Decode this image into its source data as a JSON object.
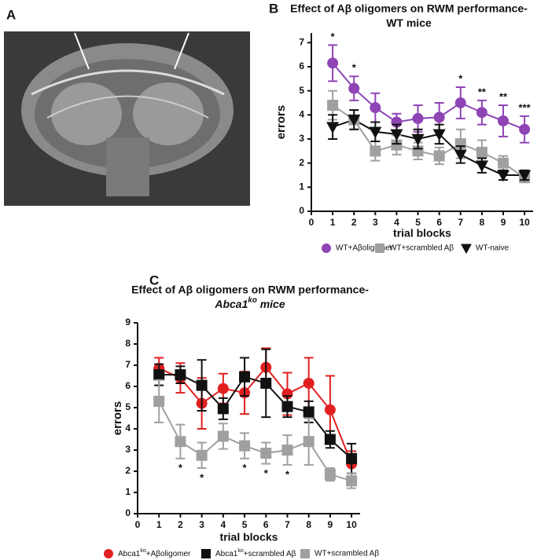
{
  "panels": [
    "A",
    "B",
    "C"
  ],
  "chart_data": [
    {
      "type": "line",
      "title": "Effect of Aβ oligomers on RWM performance-",
      "subtitle": [
        {
          "text": "WT mice"
        }
      ],
      "x_label": "trial blocks",
      "y_label": "errors",
      "x": [
        1,
        2,
        3,
        4,
        5,
        6,
        7,
        8,
        9,
        10
      ],
      "xlim": [
        0,
        10.4
      ],
      "xticks": [
        0,
        1,
        2,
        3,
        4,
        5,
        6,
        7,
        8,
        9,
        10
      ],
      "ylim": [
        0,
        7.4
      ],
      "yticks": [
        0,
        1,
        2,
        3,
        4,
        5,
        6,
        7
      ],
      "grid": false,
      "series": [
        {
          "name": "WT+Aβoligomer",
          "color": "#8e44b5",
          "marker": "circle",
          "values": [
            6.15,
            5.1,
            4.3,
            3.7,
            3.85,
            3.9,
            4.5,
            4.1,
            3.75,
            3.4
          ],
          "errors": [
            0.75,
            0.5,
            0.6,
            0.35,
            0.55,
            0.6,
            0.65,
            0.5,
            0.65,
            0.55
          ]
        },
        {
          "name": "WT+scrambled Aβ",
          "color": "#a0a0a0",
          "marker": "square",
          "values": [
            4.4,
            3.8,
            2.5,
            2.75,
            2.5,
            2.3,
            2.8,
            2.45,
            2.0,
            1.4
          ],
          "errors": [
            0.6,
            0.4,
            0.4,
            0.4,
            0.35,
            0.35,
            0.6,
            0.5,
            0.3,
            0.2
          ]
        },
        {
          "name": "WT-naive",
          "color": "#111111",
          "marker": "triangle-down",
          "values": [
            3.5,
            3.8,
            3.3,
            3.2,
            3.0,
            3.2,
            2.35,
            1.9,
            1.5,
            1.5
          ],
          "errors": [
            0.5,
            0.4,
            0.4,
            0.4,
            0.4,
            0.4,
            0.35,
            0.3,
            0.2,
            0.2
          ]
        }
      ],
      "annotations": [
        {
          "x": 1,
          "text": "*"
        },
        {
          "x": 2,
          "text": "*"
        },
        {
          "x": 7,
          "text": "*"
        },
        {
          "x": 8,
          "text": "**"
        },
        {
          "x": 9,
          "text": "**"
        },
        {
          "x": 10,
          "text": "***"
        }
      ]
    },
    {
      "type": "line",
      "title": "Effect of Aβ oligomers on RWM performance-",
      "subtitle": [
        {
          "text": "Abca1",
          "italic": true
        },
        {
          "text": "ko",
          "sup": true,
          "italic": true
        },
        {
          "text": " mice",
          "italic": true
        }
      ],
      "x_label": "trial blocks",
      "y_label": "errors",
      "x": [
        1,
        2,
        3,
        4,
        5,
        6,
        7,
        8,
        9,
        10
      ],
      "xlim": [
        0,
        10.4
      ],
      "xticks": [
        0,
        1,
        2,
        3,
        4,
        5,
        6,
        7,
        8,
        9,
        10
      ],
      "ylim": [
        0,
        9
      ],
      "yticks": [
        0,
        1,
        2,
        3,
        4,
        5,
        6,
        7,
        8,
        9
      ],
      "grid": false,
      "series": [
        {
          "name": [
            {
              "text": "Abca1"
            },
            {
              "text": "ko",
              "sup": true
            },
            {
              "text": "+Aβoligomer"
            }
          ],
          "color": "#e02020",
          "marker": "circle",
          "values": [
            6.85,
            6.4,
            5.2,
            5.9,
            5.7,
            6.9,
            5.65,
            6.15,
            4.9,
            2.35
          ],
          "errors": [
            0.5,
            0.7,
            1.2,
            0.7,
            1.0,
            0.9,
            1.0,
            1.2,
            1.6,
            0.6
          ]
        },
        {
          "name": [
            {
              "text": "Abca1"
            },
            {
              "text": "ko",
              "sup": true
            },
            {
              "text": "+scrambled Aβ"
            }
          ],
          "color": "#111111",
          "marker": "square",
          "values": [
            6.55,
            6.55,
            6.05,
            4.95,
            6.45,
            6.15,
            5.05,
            4.8,
            3.5,
            2.6
          ],
          "errors": [
            0.5,
            0.4,
            1.2,
            0.5,
            0.9,
            1.6,
            0.5,
            0.5,
            0.4,
            0.7
          ]
        },
        {
          "name": "WT+scrambled Aβ",
          "color": "#a0a0a0",
          "marker": "square",
          "values": [
            5.3,
            3.4,
            2.75,
            3.65,
            3.2,
            2.85,
            3.0,
            3.4,
            1.85,
            1.55
          ],
          "errors": [
            1.0,
            0.8,
            0.6,
            0.6,
            0.6,
            0.5,
            0.7,
            1.1,
            0.3,
            0.35
          ]
        }
      ],
      "annotations": [
        {
          "x": 2,
          "text": "*"
        },
        {
          "x": 3,
          "text": "*"
        },
        {
          "x": 5,
          "text": "*"
        },
        {
          "x": 6,
          "text": "*"
        },
        {
          "x": 7,
          "text": "*"
        }
      ]
    }
  ]
}
